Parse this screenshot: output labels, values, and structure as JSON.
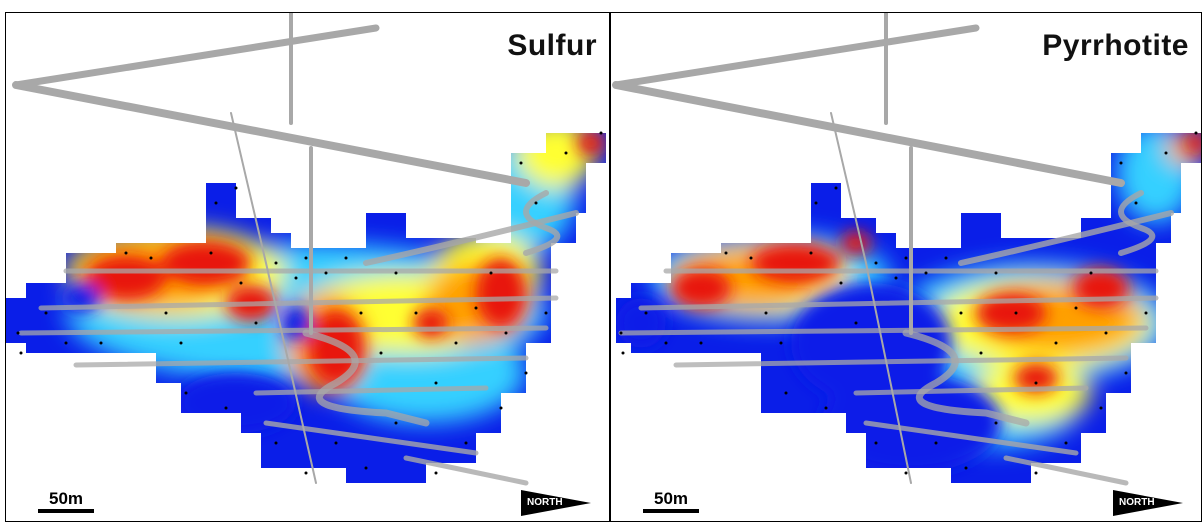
{
  "panels": [
    {
      "title": "Sulfur",
      "scale_label": "50m",
      "north_label": "NORTH"
    },
    {
      "title": "Pyrrhotite",
      "scale_label": "50m",
      "north_label": "NORTH"
    }
  ],
  "colors": {
    "high": "#e8140a",
    "mid_high": "#ffa000",
    "mid": "#ffff30",
    "mid_low": "#34d0ff",
    "low": "#0a1ee8",
    "workings": "#a8a8a8",
    "samples": "#000000"
  }
}
